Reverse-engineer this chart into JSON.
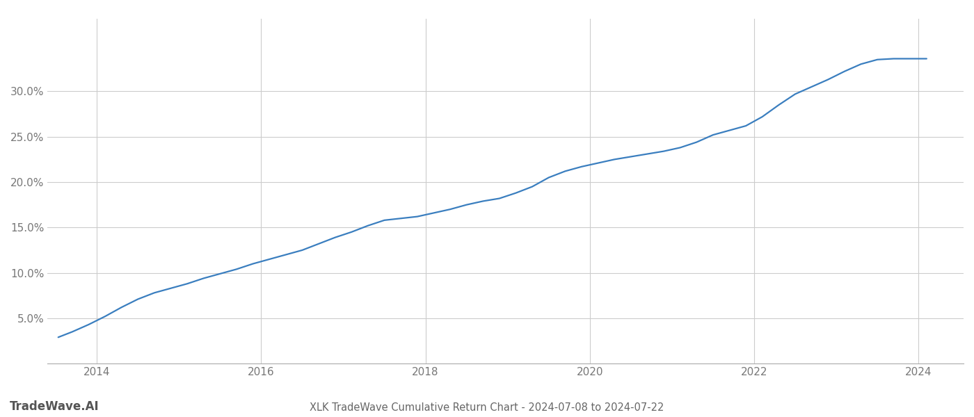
{
  "title": "XLK TradeWave Cumulative Return Chart - 2024-07-08 to 2024-07-22",
  "watermark": "TradeWave.AI",
  "x_data": [
    2013.53,
    2013.7,
    2013.9,
    2014.1,
    2014.3,
    2014.5,
    2014.7,
    2014.9,
    2015.1,
    2015.3,
    2015.5,
    2015.7,
    2015.9,
    2016.1,
    2016.3,
    2016.5,
    2016.7,
    2016.9,
    2017.1,
    2017.3,
    2017.5,
    2017.7,
    2017.9,
    2018.1,
    2018.3,
    2018.5,
    2018.7,
    2018.9,
    2019.1,
    2019.3,
    2019.5,
    2019.7,
    2019.9,
    2020.1,
    2020.3,
    2020.5,
    2020.7,
    2020.9,
    2021.1,
    2021.3,
    2021.5,
    2021.7,
    2021.9,
    2022.1,
    2022.3,
    2022.5,
    2022.7,
    2022.9,
    2023.1,
    2023.3,
    2023.5,
    2023.7,
    2024.0,
    2024.1
  ],
  "y_data": [
    2.9,
    3.5,
    4.3,
    5.2,
    6.2,
    7.1,
    7.8,
    8.3,
    8.8,
    9.4,
    9.9,
    10.4,
    11.0,
    11.5,
    12.0,
    12.5,
    13.2,
    13.9,
    14.5,
    15.2,
    15.8,
    16.0,
    16.2,
    16.6,
    17.0,
    17.5,
    17.9,
    18.2,
    18.8,
    19.5,
    20.5,
    21.2,
    21.7,
    22.1,
    22.5,
    22.8,
    23.1,
    23.4,
    23.8,
    24.4,
    25.2,
    25.7,
    26.2,
    27.2,
    28.5,
    29.7,
    30.5,
    31.3,
    32.2,
    33.0,
    33.5,
    33.6,
    33.6,
    33.6
  ],
  "ylim": [
    0,
    38
  ],
  "xlim": [
    2013.4,
    2024.55
  ],
  "yticks": [
    5.0,
    10.0,
    15.0,
    20.0,
    25.0,
    30.0
  ],
  "ytick_labels": [
    "5.0%",
    "10.0%",
    "15.0%",
    "20.0%",
    "25.0%",
    "30.0%"
  ],
  "xticks": [
    2014,
    2016,
    2018,
    2020,
    2022,
    2024
  ],
  "line_color": "#3a7ebf",
  "line_width": 1.6,
  "bg_color": "#ffffff",
  "grid_color": "#cccccc",
  "text_color": "#777777",
  "title_color": "#666666",
  "watermark_color": "#555555",
  "title_fontsize": 10.5,
  "tick_fontsize": 11,
  "watermark_fontsize": 12
}
